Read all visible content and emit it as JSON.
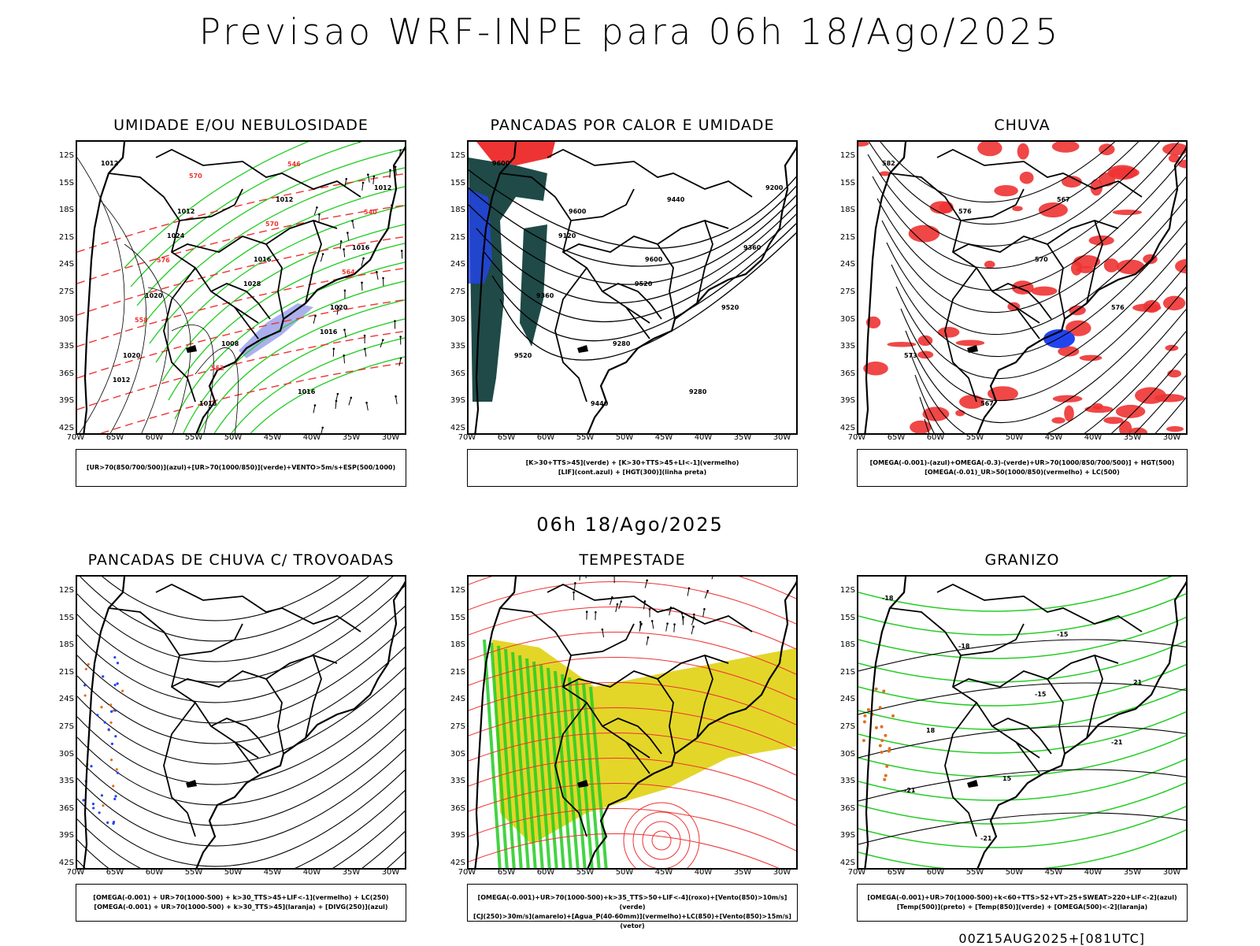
{
  "title": "Previsao WRF-INPE  para 06h 18/Ago/2025",
  "mid_title": "06h 18/Ago/2025",
  "footer": "00Z15AUG2025+[081UTC]",
  "lat_labels": [
    "12S",
    "15S",
    "18S",
    "21S",
    "24S",
    "27S",
    "30S",
    "33S",
    "36S",
    "39S",
    "42S"
  ],
  "lon_labels": [
    "70W",
    "65W",
    "60W",
    "55W",
    "50W",
    "45W",
    "40W",
    "35W",
    "30W"
  ],
  "colors": {
    "green": "#22cc22",
    "red": "#ee3333",
    "blue": "#2244ee",
    "lavender": "#aab0ee",
    "dark_teal": "#1f4a48",
    "yellow": "#e3d629",
    "orange": "#e07020"
  },
  "panels": [
    {
      "title": "UMIDADE E/OU NEBULOSIDADE",
      "legend": [
        "[UR>70(850/700/500)](azul)+[UR>70(1000/850)](verde)+VENTO>5m/s+ESP(500/1000)"
      ],
      "contour_labels": [
        "1012",
        "1012",
        "1016",
        "1020",
        "1020",
        "1016",
        "1012",
        "1016",
        "1020",
        "1008",
        "1016",
        "1012",
        "1024",
        "1028",
        "1016",
        "1012",
        "570",
        "570",
        "564",
        "558",
        "552",
        "546",
        "540",
        "576"
      ]
    },
    {
      "title": "PANCADAS POR CALOR E UMIDADE",
      "legend": [
        "[K>30+TTS>45](verde) + [K>30+TTS>45+LI<-1](vermelho)",
        "[LIF](cont.azul) + [HGT(300)](linha preta)"
      ],
      "contour_labels": [
        "9600",
        "9600",
        "9600",
        "9520",
        "9520",
        "9440",
        "9440",
        "9360",
        "9360",
        "9280",
        "9280",
        "9200",
        "9120",
        "9520"
      ]
    },
    {
      "title": "CHUVA",
      "legend": [
        "[OMEGA(-0.001)-(azul)+OMEGA(-0.3)-(verde)+UR>70(1000/850/700/500)] + HGT(500)",
        "[OMEGA(-0.01)_UR>50(1000/850)(vermelho) + LC(500)"
      ],
      "contour_labels": [
        "582",
        "576",
        "570",
        "576",
        "573",
        "567",
        "567"
      ]
    },
    {
      "title": "PANCADAS DE CHUVA C/ TROVOADAS",
      "legend": [
        "[OMEGA(-0.001) + UR>70(1000-500) + k>30_TTS>45+LIF<-1](vermelho) + LC(250)",
        "[OMEGA(-0.001) + UR>70(1000-500) + k>30_TTS>45](laranja) + [DIVG(250)](azul)"
      ],
      "contour_labels": []
    },
    {
      "title": "TEMPESTADE",
      "legend": [
        "[OMEGA(-0.001)+UR>70(1000-500)+k>35_TTS>50+LIF<-4](roxo)+[Vento(850)>10m/s](verde)",
        "[CJ(250)>30m/s](amarelo)+[Agua_P(40-60mm)](vermelho)+LC(850)+[Vento(850)>15m/s](vetor)"
      ],
      "contour_labels": []
    },
    {
      "title": "GRANIZO",
      "legend": [
        "[OMEGA(-0.001)+UR>70(1000-500)+k<60+TTS>52+VT>25+SWEAT>220+LIF<-2](azul)",
        "[Temp(500)](preto) + [Temp(850)](verde) + [OMEGA(500)<-2](laranja)"
      ],
      "contour_labels": [
        "-18",
        "-18",
        "-15",
        "-21",
        "-21",
        "-21",
        "-15",
        "21",
        "18",
        "15"
      ]
    }
  ]
}
